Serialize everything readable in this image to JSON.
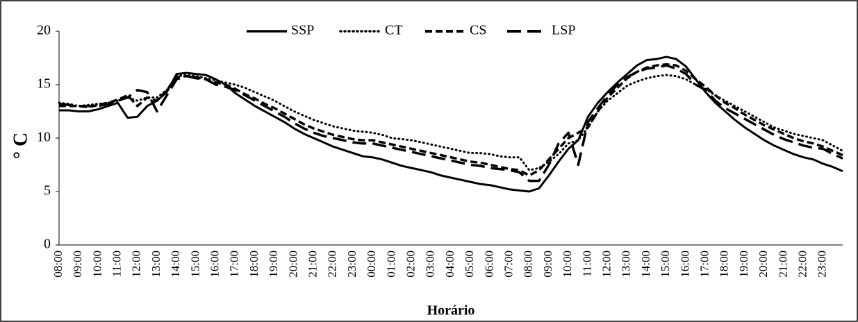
{
  "chart_data": {
    "type": "line",
    "x_label": "Horário",
    "y_label": "° C",
    "categories": [
      "08:00",
      null,
      "09:00",
      null,
      "10:00",
      null,
      "11:00",
      null,
      "12:00",
      null,
      "13:00",
      null,
      "14:00",
      null,
      "15:00",
      null,
      "16:00",
      null,
      "17:00",
      null,
      "18:00",
      null,
      "19:00",
      null,
      "20:00",
      null,
      "21:00",
      null,
      "22:00",
      null,
      "23:00",
      null,
      "00:00",
      null,
      "01:00",
      null,
      "02:00",
      null,
      "03:00",
      null,
      "04:00",
      null,
      "05:00",
      null,
      "06:00",
      null,
      "07:00",
      null,
      "08:00",
      null,
      "09:00",
      null,
      "10:00",
      null,
      "11:00",
      null,
      "12:00",
      null,
      "13:00",
      null,
      "14:00",
      null,
      "15:00",
      null,
      "16:00",
      null,
      "17:00",
      null,
      "18:00",
      null,
      "19:00",
      null,
      "20:00",
      null,
      "21:00",
      null,
      "22:00",
      null,
      "23:00",
      null,
      null
    ],
    "series": [
      {
        "name": "SSP",
        "color": "#000000",
        "line_style": "solid",
        "values": [
          12.6,
          12.6,
          12.5,
          12.5,
          12.7,
          13.0,
          13.3,
          11.9,
          12.0,
          13.0,
          13.5,
          14.3,
          16.0,
          16.1,
          16.0,
          15.9,
          15.5,
          15.0,
          14.2,
          13.6,
          13.0,
          12.5,
          12.0,
          11.5,
          10.9,
          10.4,
          10.0,
          9.6,
          9.2,
          8.9,
          8.6,
          8.3,
          8.2,
          8.0,
          7.7,
          7.4,
          7.2,
          7.0,
          6.8,
          6.5,
          6.3,
          6.1,
          5.9,
          5.7,
          5.6,
          5.4,
          5.2,
          5.1,
          5.0,
          5.3,
          6.5,
          7.8,
          9.0,
          9.8,
          12.0,
          13.3,
          14.3,
          15.2,
          16.0,
          16.8,
          17.3,
          17.4,
          17.6,
          17.4,
          16.7,
          15.5,
          14.3,
          13.3,
          12.5,
          11.7,
          11.0,
          10.4,
          9.8,
          9.3,
          8.9,
          8.5,
          8.2,
          8.0,
          7.6,
          7.3,
          6.9
        ]
      },
      {
        "name": "CT",
        "color": "#000000",
        "line_style": "dotted",
        "values": [
          13.3,
          13.2,
          13.0,
          13.1,
          13.2,
          13.3,
          13.5,
          13.8,
          13.5,
          13.8,
          13.8,
          14.5,
          15.8,
          15.9,
          15.8,
          15.6,
          15.4,
          15.2,
          15.0,
          14.7,
          14.3,
          13.9,
          13.5,
          13.0,
          12.5,
          12.1,
          11.7,
          11.4,
          11.1,
          10.9,
          10.7,
          10.6,
          10.5,
          10.3,
          10.0,
          9.9,
          9.8,
          9.6,
          9.4,
          9.2,
          9.0,
          8.8,
          8.6,
          8.6,
          8.5,
          8.3,
          8.2,
          8.2,
          7.0,
          7.2,
          7.8,
          8.5,
          9.5,
          9.8,
          11.0,
          12.5,
          13.5,
          14.2,
          14.9,
          15.3,
          15.6,
          15.8,
          15.9,
          15.8,
          15.5,
          15.0,
          14.6,
          14.0,
          13.5,
          13.0,
          12.5,
          12.0,
          11.5,
          11.0,
          10.7,
          10.4,
          10.2,
          10.0,
          9.8,
          9.3,
          8.8
        ]
      },
      {
        "name": "CS",
        "color": "#000000",
        "line_style": "dashed",
        "values": [
          13.0,
          13.0,
          13.0,
          12.9,
          13.1,
          13.3,
          13.6,
          14.0,
          13.0,
          13.8,
          13.5,
          14.5,
          15.7,
          15.8,
          15.7,
          15.5,
          15.2,
          15.0,
          14.6,
          14.1,
          13.7,
          13.2,
          12.8,
          12.3,
          11.8,
          11.3,
          10.9,
          10.6,
          10.3,
          10.1,
          9.9,
          9.8,
          9.8,
          9.6,
          9.4,
          9.2,
          9.0,
          8.8,
          8.6,
          8.4,
          8.2,
          8.0,
          7.8,
          7.7,
          7.5,
          7.3,
          7.1,
          7.0,
          6.5,
          7.0,
          8.0,
          9.0,
          10.0,
          10.5,
          11.0,
          12.5,
          13.8,
          14.7,
          15.6,
          16.2,
          16.6,
          16.8,
          16.9,
          16.8,
          16.3,
          15.5,
          14.8,
          14.0,
          13.3,
          12.8,
          12.2,
          11.7,
          11.2,
          10.8,
          10.4,
          10.0,
          9.7,
          9.5,
          9.2,
          8.8,
          8.4
        ]
      },
      {
        "name": "LSP",
        "color": "#000000",
        "line_style": "long-dashed",
        "values": [
          13.2,
          13.1,
          13.0,
          13.0,
          13.0,
          13.2,
          13.5,
          13.8,
          14.5,
          14.3,
          12.5,
          14.0,
          15.5,
          15.8,
          15.6,
          15.5,
          15.0,
          14.8,
          14.5,
          14.0,
          13.5,
          13.0,
          12.5,
          12.0,
          11.4,
          10.9,
          10.5,
          10.2,
          10.0,
          9.8,
          9.6,
          9.5,
          9.5,
          9.3,
          9.1,
          8.9,
          8.7,
          8.5,
          8.3,
          8.1,
          7.9,
          7.7,
          7.5,
          7.4,
          7.2,
          7.1,
          7.0,
          6.8,
          6.0,
          6.0,
          7.5,
          9.5,
          10.5,
          7.5,
          11.5,
          12.8,
          14.0,
          15.0,
          15.7,
          16.2,
          16.5,
          16.6,
          16.8,
          16.5,
          16.0,
          15.0,
          14.5,
          13.5,
          12.8,
          12.3,
          11.8,
          11.3,
          10.8,
          10.3,
          9.9,
          9.6,
          9.3,
          9.1,
          9.0,
          8.5,
          8.1
        ]
      }
    ],
    "ylim": [
      0,
      20
    ],
    "yticks": [
      0,
      5,
      10,
      15,
      20
    ],
    "grid": false,
    "legend": "top"
  }
}
